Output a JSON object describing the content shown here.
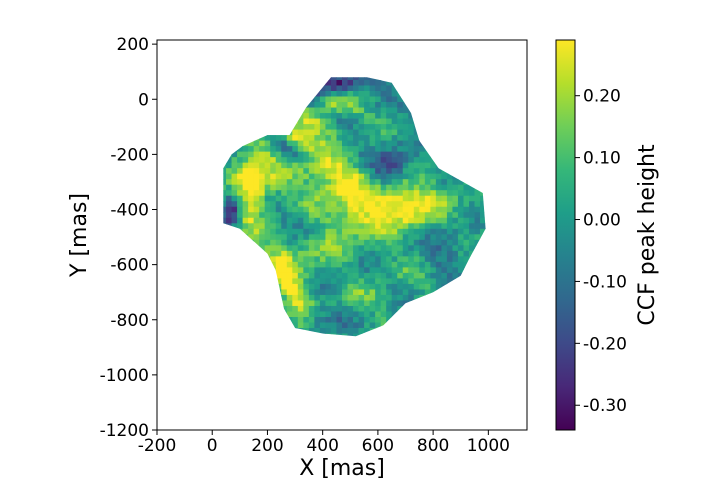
{
  "chart_data": {
    "type": "heatmap",
    "xlabel": "X [mas]",
    "ylabel": "Y [mas]",
    "colorbar_label": "CCF peak height",
    "xlim": [
      -200,
      1140
    ],
    "ylim": [
      -1200,
      215
    ],
    "xticks": [
      -200,
      0,
      200,
      400,
      600,
      800,
      1000
    ],
    "xtick_labels": [
      "-200",
      "0",
      "200",
      "400",
      "600",
      "800",
      "1000"
    ],
    "yticks": [
      200,
      0,
      -200,
      -400,
      -600,
      -800,
      -1000,
      -1200
    ],
    "ytick_labels": [
      "200",
      "0",
      "-200",
      "-400",
      "-600",
      "-800",
      "-1000",
      "-1200"
    ],
    "clim": [
      -0.34,
      0.29
    ],
    "cbar_ticks": [
      0.2,
      0.1,
      0.0,
      -0.1,
      -0.2,
      -0.3
    ],
    "cbar_tick_labels": [
      "0.20",
      "0.10",
      "0.00",
      "-0.10",
      "-0.20",
      "-0.30"
    ],
    "colormap": [
      "#440154",
      "#482878",
      "#3e4a89",
      "#31688e",
      "#26828e",
      "#1f9e89",
      "#35b779",
      "#6ece58",
      "#b5de2b",
      "#fde725"
    ],
    "cell_size_mas": 20,
    "map_outline_mas": [
      [
        430,
        80
      ],
      [
        560,
        80
      ],
      [
        650,
        60
      ],
      [
        720,
        -50
      ],
      [
        750,
        -150
      ],
      [
        820,
        -250
      ],
      [
        980,
        -340
      ],
      [
        990,
        -470
      ],
      [
        930,
        -580
      ],
      [
        900,
        -640
      ],
      [
        800,
        -700
      ],
      [
        700,
        -740
      ],
      [
        620,
        -820
      ],
      [
        520,
        -860
      ],
      [
        400,
        -850
      ],
      [
        300,
        -830
      ],
      [
        260,
        -760
      ],
      [
        230,
        -620
      ],
      [
        200,
        -560
      ],
      [
        100,
        -470
      ],
      [
        40,
        -450
      ],
      [
        40,
        -250
      ],
      [
        70,
        -200
      ],
      [
        110,
        -170
      ],
      [
        200,
        -130
      ],
      [
        280,
        -130
      ],
      [
        340,
        -30
      ]
    ],
    "features": [
      {
        "x": 430,
        "y": -250,
        "sx": 220,
        "sy": 50,
        "rot": -25,
        "v": 0.18
      },
      {
        "x": 460,
        "y": -330,
        "sx": 250,
        "sy": 60,
        "rot": -15,
        "v": 0.12
      },
      {
        "x": 560,
        "y": -420,
        "sx": 200,
        "sy": 80,
        "rot": 10,
        "v": 0.16
      },
      {
        "x": 350,
        "y": -560,
        "sx": 180,
        "sy": 60,
        "rot": 30,
        "v": 0.12
      },
      {
        "x": 150,
        "y": -350,
        "sx": 40,
        "sy": 100,
        "rot": -10,
        "v": 0.26
      },
      {
        "x": 110,
        "y": -270,
        "sx": 40,
        "sy": 40,
        "rot": 0,
        "v": 0.24
      },
      {
        "x": 280,
        "y": -680,
        "sx": 35,
        "sy": 120,
        "rot": 20,
        "v": 0.22
      },
      {
        "x": 300,
        "y": -140,
        "sx": 50,
        "sy": 35,
        "rot": 0,
        "v": 0.24
      },
      {
        "x": 380,
        "y": -90,
        "sx": 60,
        "sy": 30,
        "rot": -30,
        "v": 0.18
      },
      {
        "x": 750,
        "y": -380,
        "sx": 100,
        "sy": 40,
        "rot": 25,
        "v": 0.08
      },
      {
        "x": 680,
        "y": -620,
        "sx": 120,
        "sy": 40,
        "rot": -30,
        "v": 0.06
      },
      {
        "x": 560,
        "y": -720,
        "sx": 80,
        "sy": 40,
        "rot": 0,
        "v": 0.1
      },
      {
        "x": 450,
        "y": -20,
        "sx": 80,
        "sy": 25,
        "rot": -20,
        "v": 0.2
      },
      {
        "x": 500,
        "y": -520,
        "sx": 150,
        "sy": 80,
        "rot": 0,
        "v": -0.05
      },
      {
        "x": 470,
        "y": 60,
        "sx": 80,
        "sy": 25,
        "rot": 0,
        "v": -0.28
      },
      {
        "x": 350,
        "y": 20,
        "sx": 30,
        "sy": 40,
        "rot": 40,
        "v": -0.26
      },
      {
        "x": 260,
        "y": -170,
        "sx": 70,
        "sy": 25,
        "rot": -35,
        "v": -0.3
      },
      {
        "x": 70,
        "y": -400,
        "sx": 25,
        "sy": 45,
        "rot": 0,
        "v": -0.32
      },
      {
        "x": 650,
        "y": -230,
        "sx": 60,
        "sy": 40,
        "rot": 0,
        "v": -0.15
      },
      {
        "x": 850,
        "y": -520,
        "sx": 50,
        "sy": 60,
        "rot": 0,
        "v": -0.12
      },
      {
        "x": 400,
        "y": -800,
        "sx": 50,
        "sy": 30,
        "rot": 0,
        "v": -0.1
      },
      {
        "x": 600,
        "y": -300,
        "sx": 70,
        "sy": 35,
        "rot": 30,
        "v": -0.18
      },
      {
        "x": 330,
        "y": -450,
        "sx": 60,
        "sy": 30,
        "rot": -20,
        "v": -0.15
      }
    ]
  }
}
